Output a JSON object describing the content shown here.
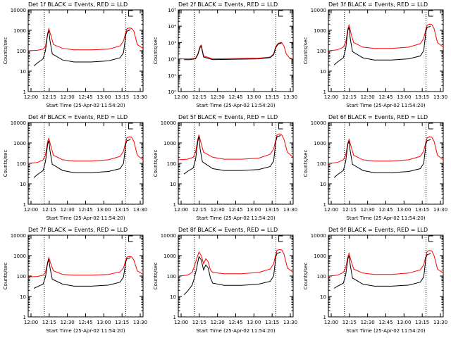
{
  "chart_data": [
    {
      "type": "line",
      "title": "Det 1f BLACK = Events, RED = LLD",
      "ylabel": "Counts/sec",
      "xlabel": "Start Time (25-Apr-02 11:54:20)",
      "x_ticks": [
        "12:00",
        "12:15",
        "12:30",
        "12:45",
        "13:00",
        "13:15",
        "13:30"
      ],
      "y_ticks": [
        "1",
        "10",
        "100",
        "1000",
        "10000"
      ],
      "ylim": [
        1,
        10000
      ],
      "log_y": true,
      "x_range_min": [
        0,
        100
      ],
      "markers_min": [
        14,
        85
      ],
      "series": [
        {
          "color": "#ff0000",
          "x": [
            0,
            8,
            13,
            15,
            17,
            18,
            20,
            22,
            30,
            40,
            55,
            70,
            80,
            83,
            85,
            86,
            88,
            90,
            92,
            95,
            100
          ],
          "y": [
            100,
            105,
            120,
            160,
            700,
            1200,
            500,
            200,
            130,
            110,
            110,
            120,
            170,
            300,
            800,
            1200,
            1300,
            1250,
            900,
            200,
            130
          ]
        },
        {
          "color": "#000000",
          "x": [
            5,
            8,
            13,
            15,
            17,
            18,
            19,
            21,
            30,
            40,
            55,
            70,
            80,
            83,
            85,
            86,
            88,
            89
          ],
          "y": [
            18,
            25,
            40,
            100,
            700,
            900,
            300,
            70,
            35,
            28,
            28,
            32,
            45,
            80,
            600,
            900,
            1000,
            1100
          ]
        }
      ]
    },
    {
      "type": "line",
      "title": "Det 2f BLACK = Events, RED = LLD",
      "ylabel": "Counts/sec",
      "xlabel": "Start Time (25-Apr-02 11:54:20)",
      "x_ticks": [
        "12:00",
        "12:15",
        "12:30",
        "12:45",
        "13:00",
        "13:15",
        "13:30"
      ],
      "y_ticks": [
        "10⁰",
        "10¹",
        "10²",
        "10³",
        "10⁴",
        "10⁵"
      ],
      "ylim": [
        1,
        100000
      ],
      "log_y": true,
      "x_range_min": [
        0,
        100
      ],
      "markers_min": [
        14,
        85
      ],
      "series": [
        {
          "color": "#ff0000",
          "x": [
            0,
            10,
            15,
            17,
            19,
            20,
            22,
            30,
            50,
            70,
            80,
            83,
            85,
            87,
            89,
            90,
            92,
            94,
            97,
            100
          ],
          "y": [
            100,
            100,
            110,
            200,
            600,
            700,
            150,
            100,
            105,
            110,
            130,
            200,
            600,
            900,
            1000,
            1000,
            600,
            200,
            110,
            100
          ]
        },
        {
          "color": "#000000",
          "x": [
            5,
            10,
            15,
            17,
            19,
            20,
            22,
            30,
            50,
            70,
            80,
            83,
            85,
            87,
            89,
            90
          ],
          "y": [
            90,
            90,
            100,
            180,
            500,
            600,
            130,
            90,
            95,
            100,
            120,
            180,
            500,
            800,
            900,
            950
          ]
        }
      ]
    },
    {
      "type": "line",
      "title": "Det 3f BLACK = Events, RED = LLD",
      "ylabel": "Counts/sec",
      "xlabel": "Start Time (25-Apr-02 11:54:20)",
      "x_ticks": [
        "12:00",
        "12:15",
        "12:30",
        "12:45",
        "13:00",
        "13:15",
        "13:30"
      ],
      "y_ticks": [
        "1",
        "10",
        "100",
        "1000",
        "10000"
      ],
      "ylim": [
        1,
        10000
      ],
      "log_y": true,
      "x_range_min": [
        0,
        100
      ],
      "markers_min": [
        14,
        85
      ],
      "series": [
        {
          "color": "#ff0000",
          "x": [
            0,
            8,
            13,
            15,
            17,
            18,
            20,
            22,
            30,
            40,
            55,
            70,
            80,
            83,
            85,
            86,
            88,
            90,
            92,
            95,
            100
          ],
          "y": [
            100,
            110,
            150,
            250,
            1200,
            1800,
            600,
            250,
            150,
            130,
            130,
            150,
            220,
            400,
            1200,
            1800,
            2000,
            1900,
            1200,
            250,
            150
          ]
        },
        {
          "color": "#000000",
          "x": [
            5,
            8,
            13,
            15,
            17,
            18,
            19,
            21,
            30,
            40,
            55,
            70,
            80,
            83,
            85,
            86,
            88,
            89
          ],
          "y": [
            20,
            28,
            45,
            120,
            1000,
            1400,
            400,
            90,
            45,
            35,
            35,
            40,
            55,
            100,
            900,
            1400,
            1500,
            1600
          ]
        }
      ]
    },
    {
      "type": "line",
      "title": "Det 4f BLACK = Events, RED = LLD",
      "ylabel": "Counts/sec",
      "xlabel": "Start Time (25-Apr-02 11:54:20)",
      "x_ticks": [
        "12:00",
        "12:15",
        "12:30",
        "12:45",
        "13:00",
        "13:15",
        "13:30"
      ],
      "y_ticks": [
        "1",
        "10",
        "100",
        "1000",
        "10000"
      ],
      "ylim": [
        1,
        10000
      ],
      "log_y": true,
      "x_range_min": [
        0,
        100
      ],
      "markers_min": [
        14,
        85
      ],
      "series": [
        {
          "color": "#ff0000",
          "x": [
            0,
            8,
            13,
            15,
            17,
            18,
            20,
            22,
            30,
            40,
            55,
            70,
            80,
            83,
            85,
            86,
            88,
            90,
            92,
            95,
            100
          ],
          "y": [
            100,
            110,
            150,
            250,
            1200,
            1700,
            600,
            250,
            150,
            130,
            130,
            150,
            220,
            400,
            1200,
            1800,
            2000,
            1900,
            1200,
            250,
            150
          ]
        },
        {
          "color": "#000000",
          "x": [
            5,
            8,
            13,
            15,
            17,
            18,
            19,
            21,
            30,
            40,
            55,
            70,
            80,
            83,
            85,
            86,
            88,
            89
          ],
          "y": [
            20,
            28,
            45,
            120,
            900,
            1300,
            400,
            90,
            45,
            35,
            35,
            40,
            55,
            100,
            900,
            1300,
            1400,
            1500
          ]
        }
      ]
    },
    {
      "type": "line",
      "title": "Det 5f BLACK = Events, RED = LLD",
      "ylabel": "Counts/sec",
      "xlabel": "Start Time (25-Apr-02 11:54:20)",
      "x_ticks": [
        "12:00",
        "12:15",
        "12:30",
        "12:45",
        "13:00",
        "13:15",
        "13:30"
      ],
      "y_ticks": [
        "1",
        "10",
        "100",
        "1000",
        "10000"
      ],
      "ylim": [
        1,
        10000
      ],
      "log_y": true,
      "x_range_min": [
        0,
        100
      ],
      "markers_min": [
        14,
        85
      ],
      "series": [
        {
          "color": "#ff0000",
          "x": [
            0,
            8,
            13,
            15,
            17,
            18,
            20,
            22,
            30,
            40,
            55,
            70,
            80,
            83,
            85,
            86,
            88,
            90,
            92,
            95,
            100
          ],
          "y": [
            150,
            160,
            200,
            350,
            1500,
            2500,
            900,
            350,
            200,
            160,
            160,
            180,
            280,
            500,
            1500,
            2500,
            2800,
            2500,
            1500,
            350,
            200
          ]
        },
        {
          "color": "#000000",
          "x": [
            5,
            8,
            13,
            15,
            17,
            18,
            19,
            21,
            30,
            40,
            55,
            70,
            80,
            83,
            85,
            86,
            88,
            89
          ],
          "y": [
            30,
            40,
            60,
            150,
            1200,
            2000,
            500,
            120,
            55,
            45,
            45,
            50,
            70,
            130,
            1200,
            2000,
            2200,
            2300
          ]
        }
      ]
    },
    {
      "type": "line",
      "title": "Det 6f BLACK = Events, RED = LLD",
      "ylabel": "Counts/sec",
      "xlabel": "Start Time (25-Apr-02 11:54:20)",
      "x_ticks": [
        "12:00",
        "12:15",
        "12:30",
        "12:45",
        "13:00",
        "13:15",
        "13:30"
      ],
      "y_ticks": [
        "1",
        "10",
        "100",
        "1000",
        "10000"
      ],
      "ylim": [
        1,
        10000
      ],
      "log_y": true,
      "x_range_min": [
        0,
        100
      ],
      "markers_min": [
        14,
        85
      ],
      "series": [
        {
          "color": "#ff0000",
          "x": [
            0,
            8,
            13,
            15,
            17,
            18,
            20,
            22,
            30,
            40,
            55,
            70,
            80,
            83,
            85,
            86,
            88,
            90,
            92,
            95,
            100
          ],
          "y": [
            100,
            110,
            150,
            250,
            1000,
            1500,
            600,
            250,
            150,
            130,
            130,
            150,
            220,
            400,
            1200,
            1800,
            2000,
            1900,
            1200,
            250,
            150
          ]
        },
        {
          "color": "#000000",
          "x": [
            5,
            8,
            13,
            15,
            17,
            18,
            19,
            21,
            30,
            40,
            55,
            70,
            80,
            83,
            85,
            86,
            88,
            89
          ],
          "y": [
            20,
            28,
            45,
            120,
            900,
            1200,
            400,
            90,
            45,
            35,
            35,
            40,
            55,
            100,
            900,
            1300,
            1400,
            1500
          ]
        }
      ]
    },
    {
      "type": "line",
      "title": "Det 7f BLACK = Events, RED = LLD",
      "ylabel": "Counts/sec",
      "xlabel": "Start Time (25-Apr-02 11:54:20)",
      "x_ticks": [
        "12:00",
        "12:15",
        "12:30",
        "12:45",
        "13:00",
        "13:15",
        "13:30"
      ],
      "y_ticks": [
        "1",
        "10",
        "100",
        "1000",
        "10000"
      ],
      "ylim": [
        1,
        10000
      ],
      "log_y": true,
      "x_range_min": [
        0,
        100
      ],
      "markers_min": [
        14,
        85
      ],
      "series": [
        {
          "color": "#ff0000",
          "x": [
            0,
            8,
            13,
            15,
            17,
            18,
            20,
            22,
            30,
            40,
            55,
            70,
            80,
            83,
            85,
            86,
            88,
            90,
            92,
            95,
            100
          ],
          "y": [
            90,
            95,
            110,
            150,
            500,
            800,
            350,
            180,
            120,
            110,
            110,
            120,
            160,
            250,
            600,
            850,
            900,
            850,
            600,
            180,
            120
          ]
        },
        {
          "color": "#000000",
          "x": [
            5,
            8,
            13,
            15,
            17,
            18,
            19,
            21,
            30,
            40,
            55,
            70,
            80,
            83,
            85,
            86,
            88,
            89
          ],
          "y": [
            25,
            30,
            40,
            90,
            450,
            650,
            250,
            70,
            40,
            32,
            32,
            36,
            50,
            90,
            500,
            700,
            750,
            800
          ]
        }
      ]
    },
    {
      "type": "line",
      "title": "Det 8f BLACK = Events, RED = LLD",
      "ylabel": "Counts/sec",
      "xlabel": "Start Time (25-Apr-02 11:54:20)",
      "x_ticks": [
        "12:00",
        "12:15",
        "12:30",
        "12:45",
        "13:00",
        "13:15",
        "13:30"
      ],
      "y_ticks": [
        "1",
        "10",
        "100",
        "1000",
        "10000"
      ],
      "ylim": [
        1,
        10000
      ],
      "log_y": true,
      "x_range_min": [
        0,
        100
      ],
      "markers_min": [
        14,
        85
      ],
      "series": [
        {
          "color": "#ff0000",
          "x": [
            0,
            8,
            12,
            14,
            16,
            18,
            20,
            22,
            24,
            26,
            28,
            30,
            40,
            55,
            70,
            80,
            83,
            85,
            86,
            88,
            90,
            92,
            95,
            100
          ],
          "y": [
            100,
            110,
            150,
            300,
            700,
            1500,
            1000,
            400,
            700,
            500,
            200,
            150,
            130,
            130,
            150,
            220,
            400,
            1200,
            1800,
            2000,
            1900,
            1200,
            250,
            150
          ]
        },
        {
          "color": "#000000",
          "x": [
            5,
            8,
            12,
            14,
            16,
            18,
            20,
            22,
            24,
            26,
            28,
            30,
            40,
            55,
            70,
            80,
            83,
            85,
            86,
            88,
            89
          ],
          "y": [
            12,
            18,
            35,
            80,
            250,
            900,
            600,
            200,
            350,
            250,
            80,
            45,
            35,
            35,
            40,
            55,
            100,
            900,
            1300,
            1400,
            1500
          ]
        }
      ]
    },
    {
      "type": "line",
      "title": "Det 9f BLACK = Events, RED = LLD",
      "ylabel": "Counts/sec",
      "xlabel": "Start Time (25-Apr-02 11:54:20)",
      "x_ticks": [
        "12:00",
        "12:15",
        "12:30",
        "12:45",
        "13:00",
        "13:15",
        "13:30"
      ],
      "y_ticks": [
        "1",
        "10",
        "100",
        "1000",
        "10000"
      ],
      "ylim": [
        1,
        10000
      ],
      "log_y": true,
      "x_range_min": [
        0,
        100
      ],
      "markers_min": [
        14,
        85
      ],
      "series": [
        {
          "color": "#ff0000",
          "x": [
            0,
            8,
            13,
            15,
            17,
            18,
            20,
            22,
            30,
            40,
            55,
            70,
            80,
            83,
            85,
            86,
            88,
            90,
            92,
            95,
            100
          ],
          "y": [
            100,
            110,
            150,
            250,
            900,
            1300,
            500,
            220,
            140,
            120,
            120,
            140,
            200,
            350,
            1000,
            1600,
            1800,
            1700,
            1000,
            220,
            140
          ]
        },
        {
          "color": "#000000",
          "x": [
            5,
            8,
            13,
            15,
            17,
            18,
            19,
            21,
            30,
            40,
            55,
            70,
            80,
            83,
            85,
            86,
            88,
            89
          ],
          "y": [
            25,
            32,
            45,
            110,
            700,
            1000,
            350,
            80,
            40,
            32,
            32,
            36,
            50,
            90,
            800,
            1100,
            1200,
            1300
          ]
        }
      ]
    }
  ]
}
